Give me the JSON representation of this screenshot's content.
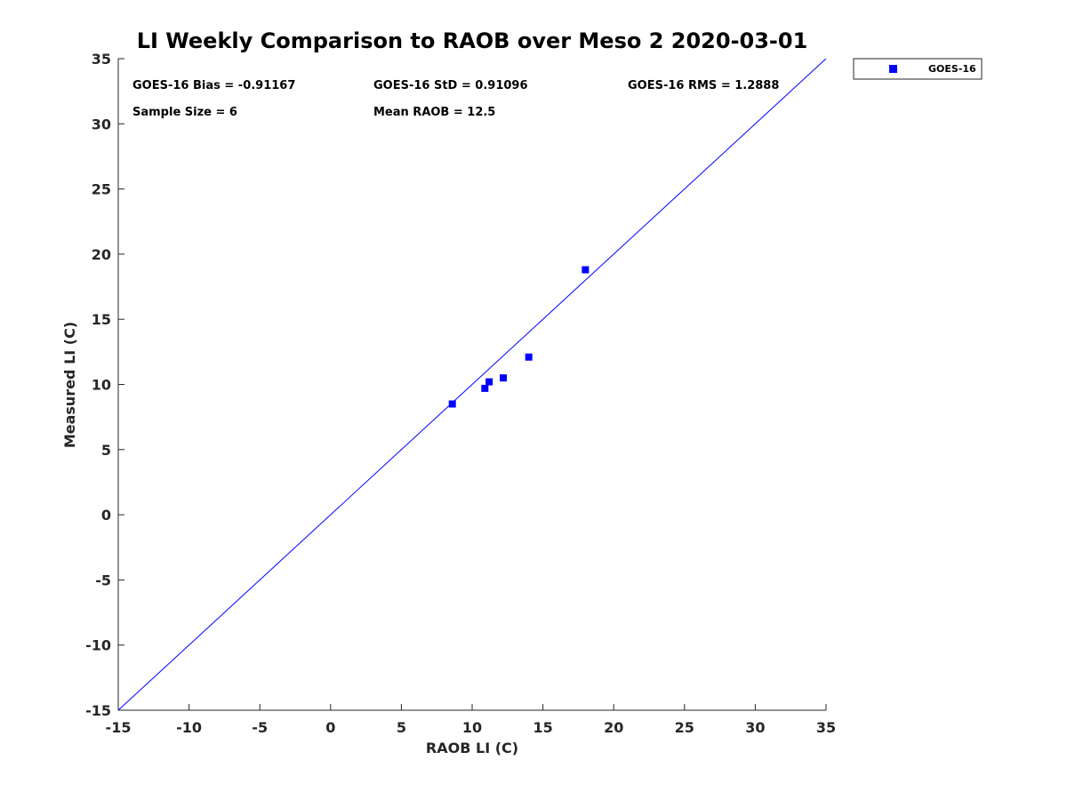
{
  "colors": {
    "series": "#0000ff",
    "axis": "#262626"
  },
  "stats": {
    "bias": "GOES-16 Bias = -0.91167",
    "std": "GOES-16 StD = 0.91096",
    "rms": "GOES-16 RMS = 1.2888",
    "sample_size": "Sample Size = 6",
    "mean_raob": "Mean RAOB = 12.5"
  },
  "chart_data": {
    "type": "scatter",
    "title": "LI Weekly Comparison to RAOB over Meso 2 2020-03-01",
    "xlabel": "RAOB LI (C)",
    "ylabel": "Measured LI (C)",
    "xlim": [
      -15,
      35
    ],
    "ylim": [
      -15,
      35
    ],
    "xticks": [
      -15,
      -10,
      -5,
      0,
      5,
      10,
      15,
      20,
      25,
      30,
      35
    ],
    "yticks": [
      -15,
      -10,
      -5,
      0,
      5,
      10,
      15,
      20,
      25,
      30,
      35
    ],
    "xtick_labels": [
      "-15",
      "-10",
      "-5",
      "0",
      "5",
      "10",
      "15",
      "20",
      "25",
      "30",
      "35"
    ],
    "ytick_labels": [
      "-15",
      "-10",
      "-5",
      "0",
      "5",
      "10",
      "15",
      "20",
      "25",
      "30",
      "35"
    ],
    "grid": false,
    "legend": {
      "position": "outside-top-right",
      "entries": [
        "GOES-16"
      ]
    },
    "reference_line": {
      "name": "one-to-one",
      "from": [
        -15,
        -15
      ],
      "to": [
        35,
        35
      ]
    },
    "series": [
      {
        "name": "GOES-16",
        "marker": "square",
        "x": [
          8.6,
          10.9,
          11.2,
          12.2,
          14.0,
          18.0
        ],
        "y": [
          8.5,
          9.7,
          10.2,
          10.5,
          12.1,
          18.8
        ]
      }
    ]
  }
}
